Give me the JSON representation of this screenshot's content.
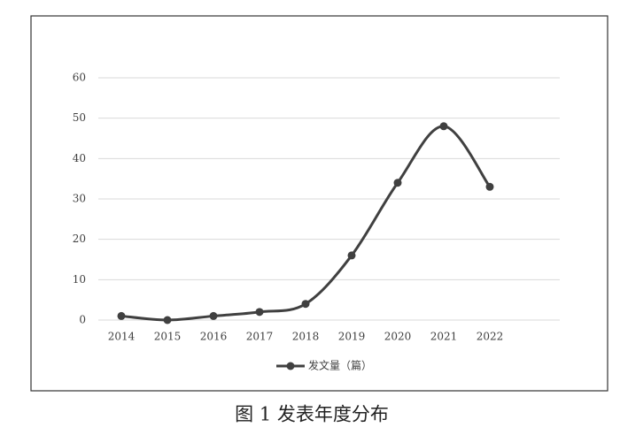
{
  "chart_data": {
    "type": "line",
    "title": "图 1  发表年度分布",
    "categories": [
      "2014",
      "2015",
      "2016",
      "2017",
      "2018",
      "2019",
      "2020",
      "2021",
      "2022"
    ],
    "series": [
      {
        "name": "发文量（篇）",
        "color": "#404040",
        "values": [
          1,
          0,
          1,
          2,
          4,
          16,
          34,
          48,
          33
        ]
      }
    ],
    "ylim": [
      0,
      60
    ],
    "yticks": [
      0,
      10,
      20,
      30,
      40,
      50,
      60
    ],
    "grid": true,
    "smooth": true,
    "legend": "bottom"
  }
}
